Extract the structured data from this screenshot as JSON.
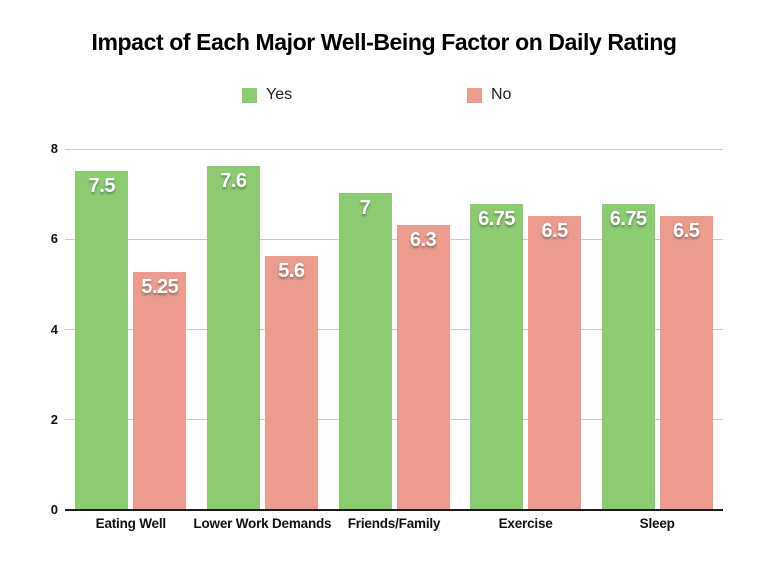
{
  "chart_data": {
    "type": "bar",
    "title": "Impact of Each Major Well-Being Factor on Daily Rating",
    "categories": [
      "Eating Well",
      "Lower Work Demands",
      "Friends/Family",
      "Exercise",
      "Sleep"
    ],
    "series": [
      {
        "name": "Yes",
        "color": "#8CCB72",
        "values": [
          7.5,
          7.6,
          7,
          6.75,
          6.75
        ]
      },
      {
        "name": "No",
        "color": "#EB9C8E",
        "values": [
          5.25,
          5.6,
          6.3,
          6.5,
          6.5
        ]
      }
    ],
    "y_axis": {
      "min": 0,
      "max": 8,
      "ticks": [
        0,
        2,
        4,
        6,
        8
      ]
    },
    "grid": true,
    "legend_position": "top-center",
    "value_labels": "inside-top-white",
    "colors": {
      "gridline": "#cccccc",
      "axis_line": "#1c1c1c",
      "title_text": "#000000",
      "tick_text": "#111111",
      "value_label_text": "#ffffff",
      "background": "#ffffff"
    }
  }
}
